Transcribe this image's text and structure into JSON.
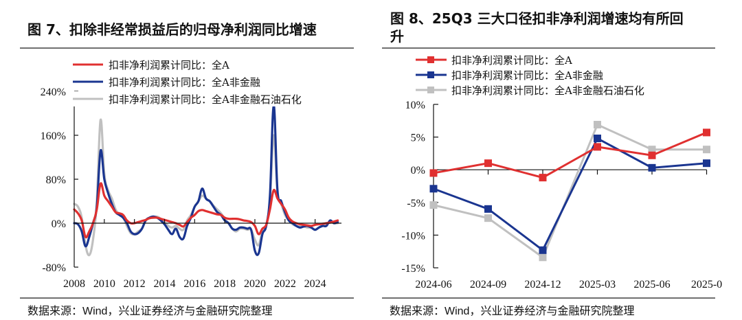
{
  "left": {
    "title": "图 7、扣除非经常损益后的归母净利润同比增速",
    "source": "数据来源：Wind，兴业证券经济与金融研究院整理"
  },
  "right": {
    "title_line1": "图 8、25Q3 三大口径扣非净利润增速均有所回",
    "title_line2": "升",
    "source": "数据来源：Wind，兴业证券经济与金融研究院整理"
  },
  "chart_data": [
    {
      "type": "line",
      "title": "图 7、扣除非经常损益后的归母净利润同比增速",
      "xlabel": "",
      "ylabel": "",
      "x_unit": "year (quarterly)",
      "xlim": [
        2008,
        2025.75
      ],
      "ylim": [
        -80,
        240
      ],
      "y_ticks": [
        "240%",
        "160%",
        "80%",
        "0%",
        "-80%"
      ],
      "y_tick_values": [
        240,
        160,
        80,
        0,
        -80
      ],
      "x_ticks": [
        "2008",
        "2010",
        "2012",
        "2014",
        "2016",
        "2018",
        "2020",
        "2022",
        "2024"
      ],
      "x_tick_values": [
        2008,
        2010,
        2012,
        2014,
        2016,
        2018,
        2020,
        2022,
        2024
      ],
      "legend_position": "top-left",
      "grid": false,
      "x": [
        2008.0,
        2008.25,
        2008.5,
        2008.75,
        2009.0,
        2009.25,
        2009.5,
        2009.75,
        2010.0,
        2010.25,
        2010.5,
        2010.75,
        2011.0,
        2011.25,
        2011.5,
        2011.75,
        2012.0,
        2012.25,
        2012.5,
        2012.75,
        2013.0,
        2013.25,
        2013.5,
        2013.75,
        2014.0,
        2014.25,
        2014.5,
        2014.75,
        2015.0,
        2015.25,
        2015.5,
        2015.75,
        2016.0,
        2016.25,
        2016.5,
        2016.75,
        2017.0,
        2017.25,
        2017.5,
        2017.75,
        2018.0,
        2018.25,
        2018.5,
        2018.75,
        2019.0,
        2019.25,
        2019.5,
        2019.75,
        2020.0,
        2020.25,
        2020.5,
        2020.75,
        2021.0,
        2021.25,
        2021.5,
        2021.75,
        2022.0,
        2022.25,
        2022.5,
        2022.75,
        2023.0,
        2023.25,
        2023.5,
        2023.75,
        2024.0,
        2024.25,
        2024.5,
        2024.75,
        2025.0,
        2025.25,
        2025.5
      ],
      "series": [
        {
          "name": "扣非净利润累计同比：全A",
          "color": "#e03030",
          "values": [
            25,
            18,
            5,
            -25,
            -15,
            0,
            25,
            72,
            50,
            40,
            30,
            20,
            18,
            15,
            5,
            0,
            0,
            2,
            4,
            6,
            9,
            10,
            10,
            8,
            6,
            4,
            2,
            0,
            -3,
            -6,
            2,
            10,
            15,
            22,
            24,
            22,
            20,
            18,
            16,
            15,
            10,
            8,
            8,
            8,
            7,
            5,
            4,
            2,
            -5,
            -20,
            -10,
            -3,
            25,
            60,
            45,
            35,
            25,
            10,
            3,
            0,
            -2,
            -3,
            -4,
            -5,
            -3,
            -2,
            -1,
            0,
            1,
            3,
            5
          ]
        },
        {
          "name": "扣非净利润累计同比：全A非金融",
          "color": "#1a3590",
          "values": [
            0,
            -2,
            -15,
            -42,
            -25,
            0,
            30,
            132,
            80,
            55,
            35,
            20,
            15,
            10,
            0,
            -15,
            -20,
            -18,
            -10,
            5,
            10,
            12,
            10,
            5,
            -2,
            -12,
            -20,
            -10,
            -25,
            -28,
            -5,
            10,
            30,
            40,
            63,
            45,
            40,
            30,
            20,
            15,
            5,
            0,
            -10,
            -12,
            -8,
            -8,
            -10,
            -12,
            -50,
            -55,
            -20,
            -5,
            50,
            215,
            60,
            40,
            20,
            5,
            0,
            -5,
            -8,
            -6,
            -5,
            -8,
            -12,
            -8,
            -5,
            -5,
            5,
            0,
            2
          ]
        },
        {
          "name": "扣非净利润累计同比：全A非金融石油石化",
          "color": "#c0c0c0",
          "values": [
            35,
            30,
            10,
            -40,
            -58,
            -30,
            40,
            188,
            90,
            60,
            45,
            25,
            15,
            10,
            -5,
            -18,
            -20,
            -15,
            -10,
            5,
            10,
            10,
            12,
            8,
            2,
            -5,
            -8,
            -5,
            -10,
            -12,
            5,
            15,
            30,
            40,
            50,
            45,
            40,
            32,
            25,
            18,
            8,
            0,
            -10,
            -15,
            -10,
            -10,
            -12,
            -12,
            -30,
            -40,
            -15,
            -5,
            40,
            160,
            55,
            35,
            15,
            5,
            -2,
            -5,
            -6,
            -6,
            -8,
            -8,
            -12,
            -8,
            -3,
            -3,
            3,
            0,
            0
          ]
        }
      ]
    },
    {
      "type": "line",
      "title": "图 8、25Q3 三大口径扣非净利润增速均有所回升",
      "xlabel": "",
      "ylabel": "",
      "categories": [
        "2024-06",
        "2024-09",
        "2024-12",
        "2025-03",
        "2025-06",
        "2025-0"
      ],
      "ylim": [
        -15,
        10
      ],
      "y_ticks": [
        "10%",
        "5%",
        "0%",
        "-5%",
        "-10%",
        "-15%"
      ],
      "y_tick_values": [
        10,
        5,
        0,
        -5,
        -10,
        -15
      ],
      "legend_position": "top-left",
      "grid": false,
      "markers": "square",
      "series": [
        {
          "name": "扣非净利润累计同比：全A",
          "color": "#e03030",
          "values": [
            -0.5,
            1.0,
            -1.2,
            3.5,
            2.2,
            5.7
          ]
        },
        {
          "name": "扣非净利润累计同比：全A非金融",
          "color": "#1a3590",
          "values": [
            -2.9,
            -6.0,
            -12.3,
            4.8,
            0.3,
            1.0
          ]
        },
        {
          "name": "扣非净利润累计同比：全A非金融石油石化",
          "color": "#c0c0c0",
          "values": [
            -5.4,
            -7.4,
            -13.4,
            6.9,
            3.1,
            3.1
          ]
        }
      ]
    }
  ]
}
